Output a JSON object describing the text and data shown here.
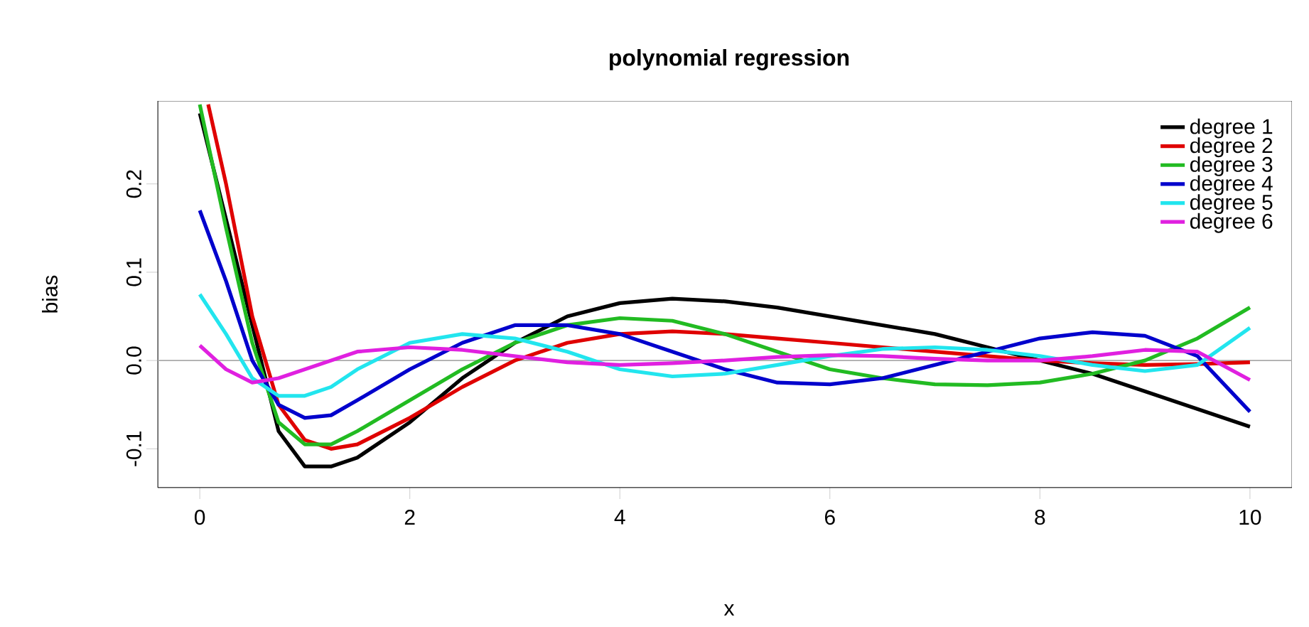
{
  "chart_data": {
    "type": "line",
    "title": "polynomial regression",
    "xlabel": "x",
    "ylabel": "bias",
    "x": [
      0,
      0.25,
      0.5,
      0.75,
      1,
      1.25,
      1.5,
      2,
      2.5,
      3,
      3.5,
      4,
      4.5,
      5,
      5.5,
      6,
      6.5,
      7,
      7.5,
      8,
      8.5,
      9,
      9.5,
      10
    ],
    "series": [
      {
        "name": "degree  1",
        "color": "#000000",
        "values": [
          0.28,
          0.16,
          null,
          -0.08,
          -0.12,
          -0.12,
          -0.11,
          -0.07,
          -0.02,
          0.02,
          0.05,
          0.065,
          0.07,
          0.067,
          0.06,
          0.05,
          0.04,
          0.03,
          0.015,
          0.0,
          -0.015,
          -0.035,
          -0.055,
          -0.075
        ]
      },
      {
        "name": "degree  2",
        "color": "#df0000",
        "x": [
          0.08,
          0.25,
          0.5,
          0.75,
          1,
          1.25,
          1.5,
          2,
          2.5,
          3,
          3.5,
          4,
          4.5,
          5,
          5.5,
          6,
          6.5,
          7,
          7.5,
          8,
          8.5,
          9,
          9.5,
          10
        ],
        "values": [
          0.29,
          0.2,
          0.05,
          -0.05,
          -0.09,
          -0.1,
          -0.095,
          -0.065,
          -0.03,
          0.0,
          0.02,
          0.03,
          0.033,
          0.03,
          0.025,
          0.02,
          0.015,
          0.01,
          0.005,
          0.0,
          -0.003,
          -0.005,
          -0.004,
          -0.002
        ]
      },
      {
        "name": "degree  3",
        "color": "#22bb22",
        "values": [
          0.29,
          0.15,
          0.02,
          -0.07,
          -0.095,
          -0.095,
          -0.08,
          -0.045,
          -0.01,
          0.02,
          0.04,
          0.048,
          0.045,
          0.03,
          0.01,
          -0.01,
          -0.02,
          -0.027,
          -0.028,
          -0.025,
          -0.015,
          0.0,
          0.025,
          0.06
        ]
      },
      {
        "name": "degree  4",
        "color": "#0000cc",
        "values": [
          0.17,
          0.09,
          0.0,
          -0.05,
          -0.065,
          -0.062,
          -0.045,
          -0.01,
          0.02,
          0.04,
          0.04,
          0.03,
          0.01,
          -0.01,
          -0.025,
          -0.027,
          -0.02,
          -0.005,
          0.01,
          0.025,
          0.032,
          0.028,
          0.005,
          -0.058
        ]
      },
      {
        "name": "degree  5",
        "color": "#22e5ee",
        "values": [
          0.075,
          0.03,
          -0.02,
          -0.04,
          -0.04,
          -0.03,
          -0.01,
          0.02,
          0.03,
          0.025,
          0.01,
          -0.01,
          -0.018,
          -0.015,
          -0.005,
          0.005,
          0.013,
          0.015,
          0.012,
          0.005,
          -0.005,
          -0.012,
          -0.005,
          0.037
        ]
      },
      {
        "name": "degree  6",
        "color": "#e020e0",
        "values": [
          0.017,
          -0.01,
          -0.025,
          -0.02,
          -0.01,
          0.0,
          0.01,
          0.015,
          0.012,
          0.005,
          -0.002,
          -0.005,
          -0.003,
          0.0,
          0.004,
          0.006,
          0.005,
          0.002,
          0.0,
          0.0,
          0.005,
          0.012,
          0.01,
          -0.022
        ]
      }
    ],
    "xlim": [
      -0.4,
      10.4
    ],
    "ylim": [
      -0.144,
      0.294
    ],
    "xticks": [
      0,
      2,
      4,
      6,
      8,
      10
    ],
    "yticks": [
      -0.1,
      {
        "value": 0,
        "label": "0.0"
      },
      0.1,
      0.2
    ],
    "ref_lines": [
      {
        "axis": "y",
        "value": 0,
        "color": "#aaaaaa"
      }
    ],
    "legend": "top right",
    "grid": false,
    "marker": "none",
    "line_style": "solid"
  }
}
